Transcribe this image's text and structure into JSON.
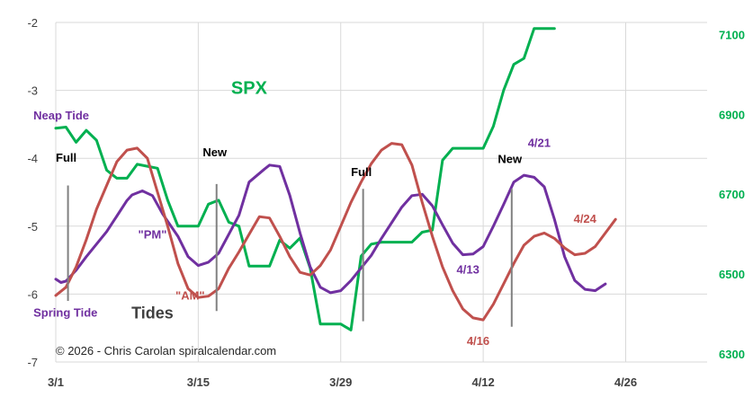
{
  "chart_data": {
    "type": "line",
    "title": "",
    "x_ticks": [
      "3/1",
      "3/15",
      "3/29",
      "4/12",
      "4/26"
    ],
    "x_tick_days": [
      0,
      14,
      28,
      42,
      56
    ],
    "xlim_days": [
      0,
      64
    ],
    "y_left": {
      "ticks": [
        "-2",
        "-3",
        "-4",
        "-5",
        "-6",
        "-7"
      ],
      "range": [
        -7,
        -2
      ]
    },
    "y_right": {
      "ticks": [
        "6300",
        "6500",
        "6700",
        "6900",
        "7100"
      ],
      "range": [
        6280,
        7130
      ]
    },
    "grid": true,
    "series": [
      {
        "name": "SPX",
        "axis": "right",
        "color": "#00b050",
        "points": [
          [
            0,
            6865
          ],
          [
            1,
            6868
          ],
          [
            2,
            6830
          ],
          [
            3,
            6860
          ],
          [
            4,
            6835
          ],
          [
            5,
            6760
          ],
          [
            6,
            6740
          ],
          [
            7,
            6740
          ],
          [
            8,
            6775
          ],
          [
            9,
            6770
          ],
          [
            10,
            6765
          ],
          [
            11,
            6685
          ],
          [
            12,
            6620
          ],
          [
            13,
            6620
          ],
          [
            14,
            6620
          ],
          [
            15,
            6675
          ],
          [
            16,
            6685
          ],
          [
            17,
            6630
          ],
          [
            18,
            6620
          ],
          [
            19,
            6520
          ],
          [
            20,
            6520
          ],
          [
            21,
            6520
          ],
          [
            22,
            6585
          ],
          [
            23,
            6565
          ],
          [
            24,
            6590
          ],
          [
            25,
            6515
          ],
          [
            26,
            6375
          ],
          [
            27,
            6375
          ],
          [
            28,
            6375
          ],
          [
            29,
            6360
          ],
          [
            30,
            6545
          ],
          [
            31,
            6575
          ],
          [
            32,
            6580
          ],
          [
            33,
            6580
          ],
          [
            34,
            6580
          ],
          [
            35,
            6580
          ],
          [
            36,
            6605
          ],
          [
            37,
            6610
          ],
          [
            38,
            6785
          ],
          [
            39,
            6815
          ],
          [
            40,
            6815
          ],
          [
            41,
            6815
          ],
          [
            42,
            6815
          ],
          [
            43,
            6870
          ],
          [
            44,
            6960
          ],
          [
            45,
            7025
          ],
          [
            46,
            7040
          ],
          [
            47,
            7115
          ],
          [
            48,
            7115
          ],
          [
            49,
            7115
          ]
        ]
      },
      {
        "name": "PM",
        "axis": "left",
        "color": "#7030a0",
        "points": [
          [
            0,
            -5.78
          ],
          [
            0.5,
            -5.83
          ],
          [
            1,
            -5.81
          ],
          [
            2,
            -5.65
          ],
          [
            3,
            -5.45
          ],
          [
            5,
            -5.08
          ],
          [
            6,
            -4.85
          ],
          [
            7,
            -4.62
          ],
          [
            7.5,
            -4.54
          ],
          [
            8.5,
            -4.48
          ],
          [
            9.5,
            -4.55
          ],
          [
            10.5,
            -4.82
          ],
          [
            12,
            -5.15
          ],
          [
            13,
            -5.45
          ],
          [
            14,
            -5.58
          ],
          [
            15,
            -5.53
          ],
          [
            16,
            -5.4
          ],
          [
            18,
            -4.84
          ],
          [
            19,
            -4.35
          ],
          [
            20.5,
            -4.16
          ],
          [
            21,
            -4.1
          ],
          [
            22,
            -4.12
          ],
          [
            23,
            -4.55
          ],
          [
            24,
            -5.1
          ],
          [
            25,
            -5.6
          ],
          [
            26,
            -5.9
          ],
          [
            27,
            -5.98
          ],
          [
            28,
            -5.95
          ],
          [
            29,
            -5.8
          ],
          [
            31,
            -5.43
          ],
          [
            32,
            -5.18
          ],
          [
            33,
            -4.95
          ],
          [
            34,
            -4.72
          ],
          [
            35,
            -4.55
          ],
          [
            36,
            -4.53
          ],
          [
            37,
            -4.7
          ],
          [
            38,
            -4.98
          ],
          [
            39,
            -5.25
          ],
          [
            40,
            -5.42
          ],
          [
            41,
            -5.41
          ],
          [
            42,
            -5.3
          ],
          [
            43,
            -5.0
          ],
          [
            44,
            -4.68
          ],
          [
            45,
            -4.35
          ],
          [
            46,
            -4.25
          ],
          [
            47,
            -4.28
          ],
          [
            48,
            -4.42
          ],
          [
            49,
            -4.9
          ],
          [
            50,
            -5.45
          ],
          [
            51,
            -5.8
          ],
          [
            52,
            -5.93
          ],
          [
            53,
            -5.95
          ],
          [
            54,
            -5.85
          ]
        ]
      },
      {
        "name": "AM",
        "axis": "left",
        "color": "#c0504d",
        "points": [
          [
            0,
            -6.02
          ],
          [
            1,
            -5.9
          ],
          [
            2,
            -5.6
          ],
          [
            3,
            -5.2
          ],
          [
            4,
            -4.75
          ],
          [
            5,
            -4.4
          ],
          [
            6,
            -4.05
          ],
          [
            7,
            -3.88
          ],
          [
            8,
            -3.85
          ],
          [
            9,
            -4.0
          ],
          [
            10,
            -4.5
          ],
          [
            11,
            -5.0
          ],
          [
            12,
            -5.55
          ],
          [
            13,
            -5.92
          ],
          [
            14,
            -6.05
          ],
          [
            15,
            -6.03
          ],
          [
            16,
            -5.92
          ],
          [
            17,
            -5.62
          ],
          [
            18,
            -5.38
          ],
          [
            19,
            -5.12
          ],
          [
            20,
            -4.86
          ],
          [
            21,
            -4.88
          ],
          [
            22,
            -5.15
          ],
          [
            23,
            -5.45
          ],
          [
            24,
            -5.68
          ],
          [
            25,
            -5.72
          ],
          [
            26,
            -5.58
          ],
          [
            27,
            -5.35
          ],
          [
            28,
            -5.0
          ],
          [
            29,
            -4.65
          ],
          [
            30,
            -4.35
          ],
          [
            31,
            -4.08
          ],
          [
            32,
            -3.88
          ],
          [
            33,
            -3.78
          ],
          [
            34,
            -3.8
          ],
          [
            35,
            -4.1
          ],
          [
            36,
            -4.65
          ],
          [
            37,
            -5.15
          ],
          [
            38,
            -5.6
          ],
          [
            39,
            -5.95
          ],
          [
            40,
            -6.22
          ],
          [
            41,
            -6.35
          ],
          [
            42,
            -6.38
          ],
          [
            43,
            -6.15
          ],
          [
            44,
            -5.85
          ],
          [
            45,
            -5.55
          ],
          [
            46,
            -5.28
          ],
          [
            47,
            -5.15
          ],
          [
            48,
            -5.1
          ],
          [
            49,
            -5.18
          ],
          [
            50,
            -5.32
          ],
          [
            51,
            -5.42
          ],
          [
            52,
            -5.4
          ],
          [
            53,
            -5.3
          ],
          [
            54,
            -5.1
          ],
          [
            55,
            -4.9
          ]
        ]
      }
    ],
    "vertical_markers": [
      {
        "label": "Full",
        "day": 1.2,
        "y_top": -4.4,
        "y_bottom": -6.1,
        "label_y": -4.05
      },
      {
        "label": "New",
        "day": 15.8,
        "y_top": -4.38,
        "y_bottom": -6.25,
        "label_y": -3.97
      },
      {
        "label": "Full",
        "day": 30.2,
        "y_top": -4.45,
        "y_bottom": -6.4,
        "label_y": -4.26
      },
      {
        "label": "New",
        "day": 44.8,
        "y_top": -4.45,
        "y_bottom": -6.48,
        "label_y": -4.07
      }
    ],
    "annotations": [
      {
        "text": "SPX",
        "color": "#00b050",
        "weight": "bold",
        "size": "large",
        "day": 19,
        "y": -3.05,
        "anchor": "middle"
      },
      {
        "text": "Neap Tide",
        "color": "#7030a0",
        "weight": "bold",
        "size": "small",
        "day": -2.2,
        "y": -3.43,
        "anchor": "start"
      },
      {
        "text": "Spring Tide",
        "color": "#7030a0",
        "weight": "bold",
        "size": "small",
        "day": -2.2,
        "y": -6.33,
        "anchor": "start"
      },
      {
        "text": "Tides",
        "color": "#404040",
        "weight": "bold",
        "size": "medium",
        "day": 9.5,
        "y": -6.36,
        "anchor": "middle"
      },
      {
        "text": "\"PM\"",
        "color": "#7030a0",
        "weight": "bold",
        "size": "small",
        "day": 9.5,
        "y": -5.18,
        "anchor": "middle"
      },
      {
        "text": "\"AM\"",
        "color": "#c0504d",
        "weight": "bold",
        "size": "small",
        "day": 13.2,
        "y": -6.08,
        "anchor": "middle"
      },
      {
        "text": "4/13",
        "color": "#7030a0",
        "weight": "bold",
        "size": "small",
        "day": 40.5,
        "y": -5.7,
        "anchor": "middle"
      },
      {
        "text": "4/16",
        "color": "#c0504d",
        "weight": "bold",
        "size": "small",
        "day": 41.5,
        "y": -6.75,
        "anchor": "middle"
      },
      {
        "text": "4/21",
        "color": "#7030a0",
        "weight": "bold",
        "size": "small",
        "day": 47.5,
        "y": -3.83,
        "anchor": "middle"
      },
      {
        "text": "4/24",
        "color": "#c0504d",
        "weight": "bold",
        "size": "small",
        "day": 52,
        "y": -4.95,
        "anchor": "middle"
      }
    ],
    "footer_text": "©  2026 - Chris Carolan  spiralcalendar.com"
  }
}
